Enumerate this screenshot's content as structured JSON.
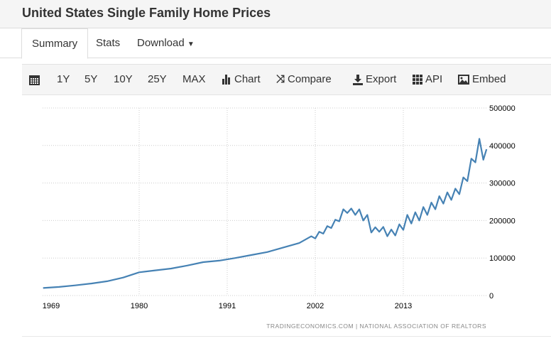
{
  "header": {
    "title": "United States Single Family Home Prices"
  },
  "tabs": [
    {
      "label": "Summary",
      "active": true
    },
    {
      "label": "Stats"
    },
    {
      "label": "Download"
    }
  ],
  "toolbar": {
    "calendar_icon": "calendar-icon",
    "items": [
      {
        "label": "1Y"
      },
      {
        "label": "5Y"
      },
      {
        "label": "10Y"
      },
      {
        "label": "25Y"
      },
      {
        "label": "MAX"
      },
      {
        "label": "Chart",
        "icon": "bar-chart-icon"
      },
      {
        "label": "Compare",
        "icon": "shuffle-icon"
      },
      {
        "label": "Export",
        "icon": "download-icon"
      },
      {
        "label": "API",
        "icon": "grid-icon"
      },
      {
        "label": "Embed",
        "icon": "image-icon"
      }
    ]
  },
  "chart_data": {
    "type": "line",
    "title": "",
    "xlabel": "",
    "ylabel": "",
    "x_ticks": [
      "1969",
      "1980",
      "1991",
      "2002",
      "2013"
    ],
    "y_ticks": [
      "0",
      "100000",
      "200000",
      "300000",
      "400000",
      "500000"
    ],
    "ylim": [
      0,
      500000
    ],
    "xlim": [
      1968,
      2023.5
    ],
    "grid": true,
    "line_color": "#4682b4",
    "source": "TRADINGECONOMICS.COM  |  NATIONAL ASSOCIATION OF REALTORS",
    "x": [
      1968,
      1970,
      1972,
      1974,
      1976,
      1978,
      1980,
      1982,
      1984,
      1986,
      1988,
      1990,
      1992,
      1994,
      1996,
      1998,
      2000,
      2001.5,
      2002,
      2002.5,
      2003,
      2003.5,
      2004,
      2004.5,
      2005,
      2005.5,
      2006,
      2006.5,
      2007,
      2007.5,
      2008,
      2008.5,
      2009,
      2009.5,
      2010,
      2010.5,
      2011,
      2011.5,
      2012,
      2012.5,
      2013,
      2013.5,
      2014,
      2014.5,
      2015,
      2015.5,
      2016,
      2016.5,
      2017,
      2017.5,
      2018,
      2018.5,
      2019,
      2019.5,
      2020,
      2020.5,
      2021,
      2021.5,
      2022,
      2022.5,
      2023,
      2023.4
    ],
    "values": [
      20000,
      23000,
      27000,
      32000,
      38000,
      48000,
      62000,
      67000,
      72000,
      80000,
      89000,
      93000,
      100000,
      108000,
      116000,
      128000,
      140000,
      158000,
      152000,
      170000,
      165000,
      185000,
      180000,
      202000,
      198000,
      230000,
      220000,
      232000,
      215000,
      230000,
      200000,
      215000,
      168000,
      182000,
      170000,
      183000,
      158000,
      176000,
      160000,
      190000,
      175000,
      215000,
      192000,
      222000,
      200000,
      236000,
      215000,
      248000,
      230000,
      265000,
      245000,
      275000,
      255000,
      285000,
      270000,
      315000,
      305000,
      365000,
      355000,
      418000,
      362000,
      390000
    ]
  }
}
